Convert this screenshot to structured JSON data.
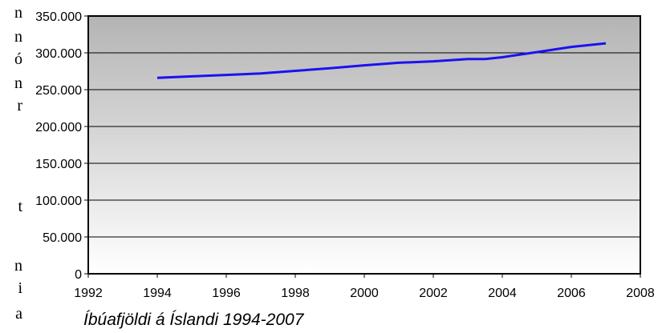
{
  "page_fragment": {
    "glyphs": [
      "n",
      "n",
      "ó",
      "n",
      "r",
      "t",
      "n",
      "i",
      "a"
    ]
  },
  "chart_data": {
    "type": "line",
    "title": "",
    "caption": "Íbúafjöldi á Íslandi 1994-2007",
    "xlabel": "",
    "ylabel": "",
    "xlim": [
      1992,
      2008
    ],
    "ylim": [
      0,
      350000
    ],
    "x_ticks": [
      "1992",
      "1994",
      "1996",
      "1998",
      "2000",
      "2002",
      "2004",
      "2006",
      "2008"
    ],
    "x_tick_values": [
      1992,
      1994,
      1996,
      1998,
      2000,
      2002,
      2004,
      2006,
      2008
    ],
    "y_ticks": [
      "0",
      "50.000",
      "100.000",
      "150.000",
      "200.000",
      "250.000",
      "300.000",
      "350.000"
    ],
    "y_tick_values": [
      0,
      50000,
      100000,
      150000,
      200000,
      250000,
      300000,
      350000
    ],
    "grid": true,
    "legend": "none",
    "line_color": "#1a12f0",
    "plot_background": [
      "#b4b4b4",
      "#ffffff"
    ],
    "series": [
      {
        "x": [
          1994,
          1995,
          1996,
          1997,
          1998,
          1999,
          2000,
          2001,
          2002,
          2003,
          2003.5,
          2004,
          2005,
          2006,
          2007
        ],
        "values": [
          266000,
          268000,
          270000,
          272000,
          275500,
          279000,
          283000,
          286500,
          288500,
          291500,
          291600,
          294000,
          301000,
          308000,
          312900
        ]
      }
    ]
  }
}
